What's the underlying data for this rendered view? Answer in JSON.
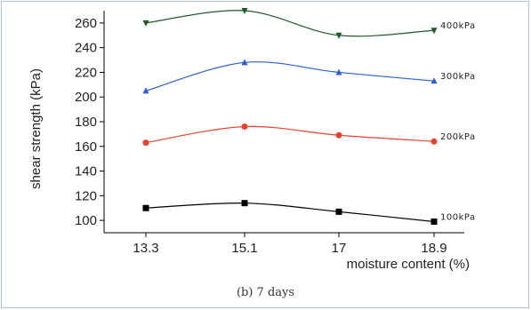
{
  "chart_data": {
    "type": "line",
    "xlabel": "moisture content (%)",
    "ylabel": "shear strength (kPa)",
    "categories": [
      "13.3",
      "15.1",
      "17",
      "18.9"
    ],
    "ylim": [
      90,
      270
    ],
    "yticks": [
      100,
      120,
      140,
      160,
      180,
      200,
      220,
      240,
      260
    ],
    "series": [
      {
        "name": "100kPa",
        "values": [
          110,
          114,
          107,
          99
        ],
        "color": "#000000",
        "marker": "square"
      },
      {
        "name": "200kPa",
        "values": [
          163,
          176,
          169,
          164
        ],
        "color": "#e8412c",
        "marker": "circle"
      },
      {
        "name": "300kPa",
        "values": [
          205,
          228,
          220,
          213
        ],
        "color": "#2b5fd6",
        "marker": "triangle-up"
      },
      {
        "name": "400kPa",
        "values": [
          260,
          270,
          250,
          254
        ],
        "color": "#1f5a2a",
        "marker": "triangle-down"
      }
    ],
    "grid": false,
    "legend": "inline labels at right of each series"
  },
  "caption": "(b) 7 days"
}
